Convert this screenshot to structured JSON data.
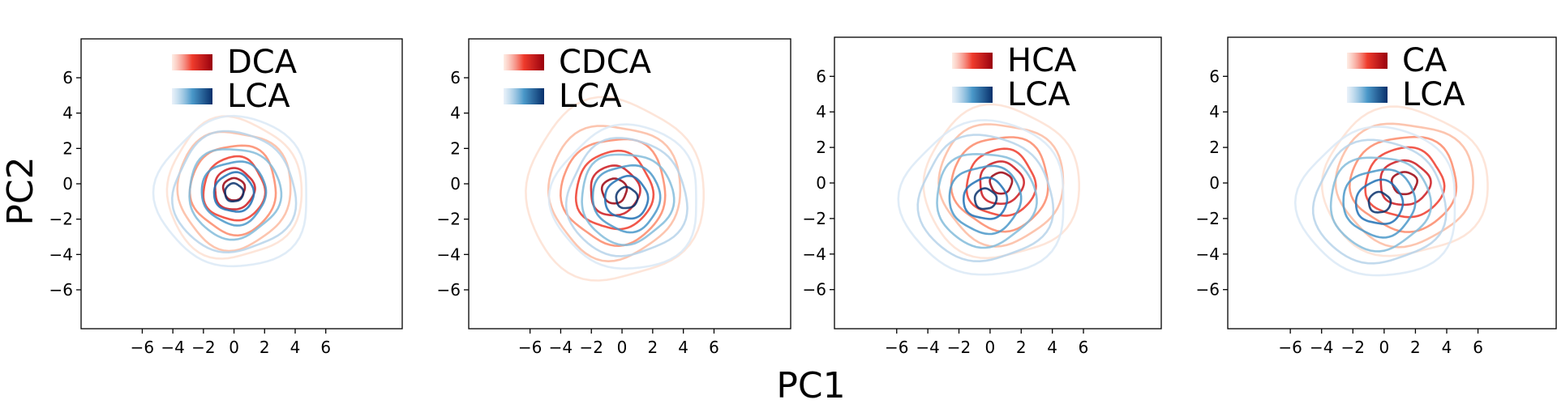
{
  "figure": {
    "xlabel": "PC1",
    "ylabel": "PC2",
    "background": "#ffffff"
  },
  "chart_data": [
    {
      "type": "contour",
      "xticks": [
        -6,
        -4,
        -2,
        0,
        2,
        4,
        6
      ],
      "yticks": [
        6,
        4,
        2,
        0,
        -2,
        -4,
        -6
      ],
      "xlim": [
        -10,
        11
      ],
      "ylim": [
        -8.2,
        8.2
      ],
      "series": [
        {
          "name": "DCA",
          "colormap": "Reds",
          "center": [
            0.0,
            -0.3
          ],
          "radii": [
            0.7,
            1.3,
            2.0,
            2.8,
            3.7,
            4.4
          ],
          "aspect": 0.9
        },
        {
          "name": "LCA",
          "colormap": "Blues",
          "center": [
            0.0,
            -0.5
          ],
          "radii": [
            0.6,
            1.3,
            2.1,
            3.0,
            4.0,
            5.0
          ],
          "aspect": 0.85
        }
      ]
    },
    {
      "type": "contour",
      "xticks": [
        -6,
        -4,
        -2,
        0,
        2,
        4,
        6
      ],
      "yticks": [
        6,
        4,
        2,
        0,
        -2,
        -4,
        -6
      ],
      "xlim": [
        -10,
        11
      ],
      "ylim": [
        -8.2,
        8.2
      ],
      "series": [
        {
          "name": "CDCA",
          "colormap": "Reds",
          "center": [
            -0.5,
            -0.4
          ],
          "radii": [
            0.8,
            1.6,
            2.5,
            3.4,
            4.3,
            5.8
          ],
          "aspect": 0.88
        },
        {
          "name": "LCA",
          "colormap": "Blues",
          "center": [
            0.3,
            -0.8
          ],
          "radii": [
            0.7,
            1.4,
            2.2,
            3.0,
            3.9,
            4.8
          ],
          "aspect": 0.85
        }
      ]
    },
    {
      "type": "contour",
      "xticks": [
        -6,
        -4,
        -2,
        0,
        2,
        4,
        6
      ],
      "yticks": [
        6,
        4,
        2,
        0,
        -2,
        -4,
        -6
      ],
      "xlim": [
        -10,
        11
      ],
      "ylim": [
        -8.2,
        8.2
      ],
      "series": [
        {
          "name": "HCA",
          "colormap": "Reds",
          "center": [
            0.7,
            0.0
          ],
          "radii": [
            0.7,
            1.4,
            2.2,
            3.1,
            4.0,
            5.0
          ],
          "aspect": 0.85
        },
        {
          "name": "LCA",
          "colormap": "Blues",
          "center": [
            -0.3,
            -0.9
          ],
          "radii": [
            0.7,
            1.4,
            2.3,
            3.2,
            4.3,
            5.3
          ],
          "aspect": 0.82
        }
      ]
    },
    {
      "type": "contour",
      "xticks": [
        -6,
        -4,
        -2,
        0,
        2,
        4,
        6
      ],
      "yticks": [
        6,
        4,
        2,
        0,
        -2,
        -4,
        -6
      ],
      "xlim": [
        -10,
        11
      ],
      "ylim": [
        -8.2,
        8.2
      ],
      "series": [
        {
          "name": "CA",
          "colormap": "Reds",
          "center": [
            1.3,
            0.0
          ],
          "radii": [
            0.8,
            1.6,
            2.5,
            3.4,
            4.4,
            5.3
          ],
          "aspect": 0.78
        },
        {
          "name": "LCA",
          "colormap": "Blues",
          "center": [
            -0.3,
            -1.1
          ],
          "radii": [
            0.7,
            1.5,
            2.3,
            3.2,
            4.2,
            5.1
          ],
          "aspect": 0.82
        }
      ]
    }
  ],
  "colormaps": {
    "Reds": [
      "#fde0d2",
      "#fcbba1",
      "#fb8a6a",
      "#ef3b2c",
      "#cb181d",
      "#99000d"
    ],
    "Blues": [
      "#dbe9f6",
      "#b7d4ea",
      "#84bcdb",
      "#4a98c9",
      "#2070b4",
      "#08306b"
    ]
  }
}
